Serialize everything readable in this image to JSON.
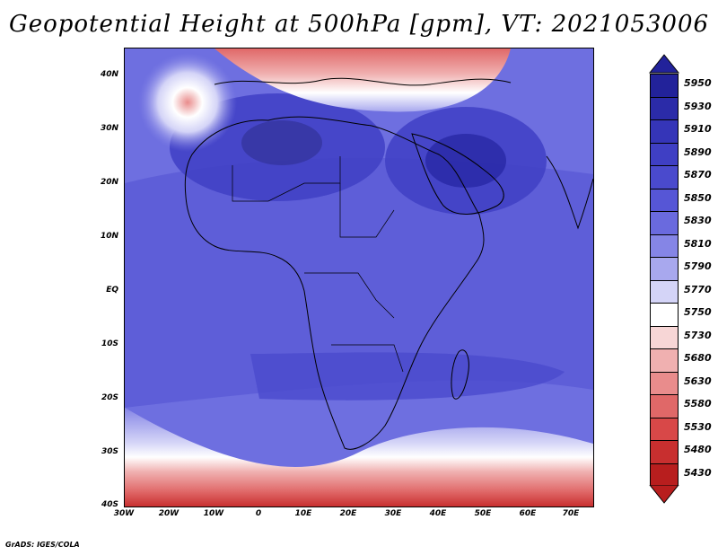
{
  "title": "Geopotential Height at 500hPa [gpm], VT: 2021053006",
  "footer": "GrADS: IGES/COLA",
  "map": {
    "projection": "lat-lon",
    "lon_range": [
      -30,
      75
    ],
    "lat_range": [
      -40,
      45
    ],
    "lat_labels": [
      "40N",
      "30N",
      "20N",
      "10N",
      "EQ",
      "10S",
      "20S",
      "30S",
      "40S"
    ],
    "lon_labels": [
      "30W",
      "20W",
      "10W",
      "0",
      "10E",
      "20E",
      "30E",
      "40E",
      "50E",
      "60E",
      "70E"
    ]
  },
  "colorbar": {
    "levels": [
      "5950",
      "5930",
      "5910",
      "5890",
      "5870",
      "5850",
      "5830",
      "5810",
      "5790",
      "5770",
      "5750",
      "5730",
      "5680",
      "5630",
      "5580",
      "5530",
      "5480",
      "5430"
    ],
    "colors": [
      "#22229a",
      "#2b2ba8",
      "#3535b8",
      "#3f3fc4",
      "#4a4acd",
      "#5656d6",
      "#6a6ade",
      "#8585e6",
      "#a8a8ee",
      "#d4d4f7",
      "#ffffff",
      "#f7d6d6",
      "#f0b0b0",
      "#e98c8c",
      "#e06868",
      "#d84848",
      "#c82f2f",
      "#b81e1e"
    ],
    "top_arrow_color": "#22229a",
    "bottom_arrow_color": "#b81e1e"
  }
}
